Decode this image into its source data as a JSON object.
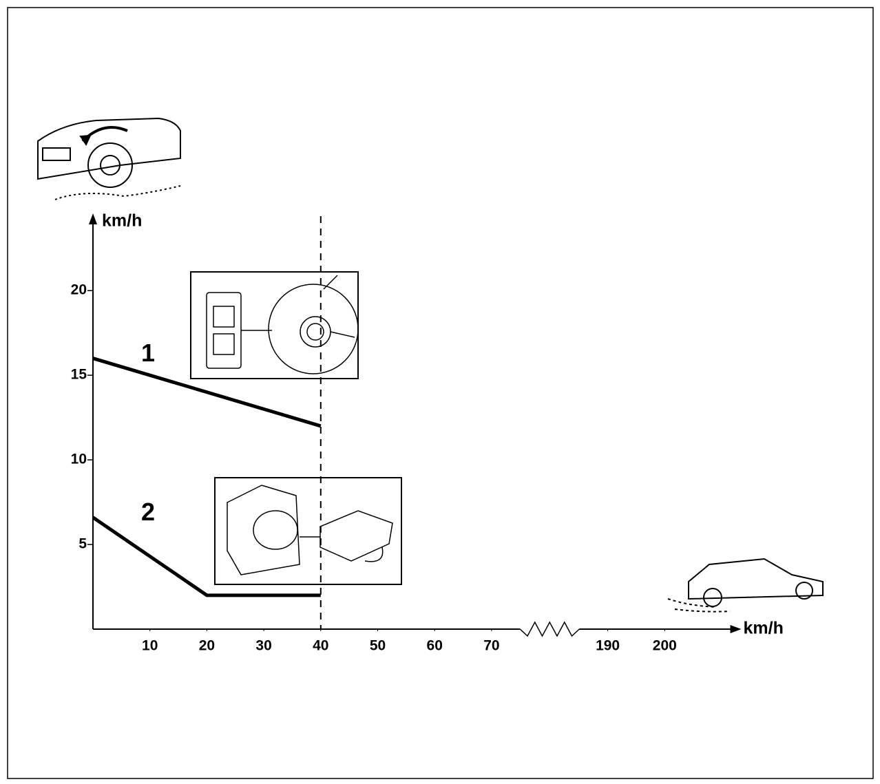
{
  "chart_data": {
    "type": "line",
    "x_label": "km/h",
    "y_label": "km/h",
    "xlim": [
      0,
      212
    ],
    "x_break": [
      75,
      185
    ],
    "xticks": [
      10,
      20,
      30,
      40,
      50,
      60,
      70,
      190,
      200
    ],
    "ylim": [
      0,
      24.4
    ],
    "yticks": [
      5,
      10,
      15,
      20
    ],
    "reference_line_x": 40,
    "series": [
      {
        "name": "1",
        "color": "#000000",
        "x": [
          0,
          40
        ],
        "values": [
          16,
          12
        ]
      },
      {
        "name": "2",
        "color": "#000000",
        "x": [
          0,
          20,
          40
        ],
        "values": [
          6.6,
          2,
          2
        ]
      }
    ]
  }
}
